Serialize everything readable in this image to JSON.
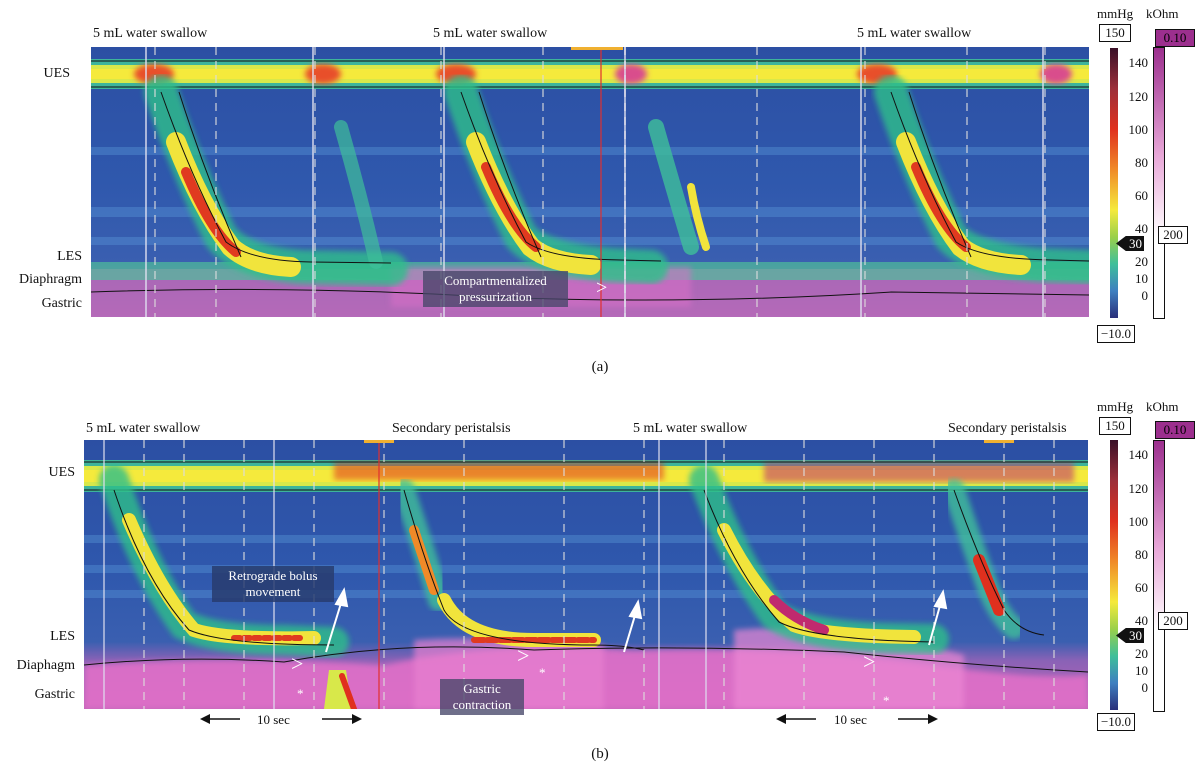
{
  "colors": {
    "background": "#2f56a8",
    "ues_band": "#f5ea3c",
    "peak": "#e0301e",
    "gastric": "#c065b8",
    "kohm_bar": "#9c2f8e"
  },
  "panel_a": {
    "swallow_labels": [
      "5 mL water swallow",
      "5 mL water swallow",
      "5 mL water swallow"
    ],
    "y_labels": {
      "ues": "UES",
      "les": "LES",
      "diaphragm": "Diaphragm",
      "gastric": "Gastric"
    },
    "annotation": "Compartmentalized pressurization",
    "arrowhead": ">",
    "caption": "(a)"
  },
  "panel_b": {
    "swallow_labels": [
      "5 mL water swallow",
      "Secondary peristalsis",
      "5 mL water swallow",
      "Secondary peristalsis"
    ],
    "y_labels": {
      "ues": "UES",
      "les": "LES",
      "diaphragm": "Diaphagm",
      "gastric": "Gastric"
    },
    "annotation_bolus": "Retrograde bolus movement",
    "annotation_gastric": "Gastric contraction",
    "arrowhead": ">",
    "asterisk": "*",
    "time_scale": "10 sec",
    "caption": "(b)"
  },
  "colorbar": {
    "unit_pressure": "mmHg",
    "unit_impedance": "kOhm",
    "max_box": "150",
    "min_box": "−10.0",
    "marker": "30",
    "impedance_top": "0.10",
    "impedance_marker": "200",
    "ticks": [
      "140",
      "120",
      "100",
      "80",
      "60",
      "40",
      "30",
      "20",
      "10",
      "0"
    ]
  },
  "chart_data": [
    {
      "type": "heatmap",
      "panel": "(a)",
      "xlabel": "",
      "ylabel": "",
      "y_categories": [
        "UES",
        "LES",
        "Diaphragm",
        "Gastric"
      ],
      "events": [
        "5 mL water swallow",
        "5 mL water swallow",
        "5 mL water swallow"
      ],
      "annotations": [
        "Compartmentalized pressurization"
      ],
      "colorbar": {
        "unit": "mmHg",
        "range": [
          -10,
          150
        ],
        "ticks": [
          0,
          10,
          20,
          30,
          40,
          60,
          80,
          100,
          120,
          140
        ],
        "isobar": 30
      },
      "impedance_scale": {
        "unit": "kOhm",
        "top": 0.1,
        "marker": 200
      }
    },
    {
      "type": "heatmap",
      "panel": "(b)",
      "xlabel": "",
      "ylabel": "",
      "y_categories": [
        "UES",
        "LES",
        "Diaphagm",
        "Gastric"
      ],
      "events": [
        "5 mL water swallow",
        "Secondary peristalsis",
        "5 mL water swallow",
        "Secondary peristalsis"
      ],
      "annotations": [
        "Retrograde bolus movement",
        "Gastric contraction"
      ],
      "time_scale_sec": 10,
      "colorbar": {
        "unit": "mmHg",
        "range": [
          -10,
          150
        ],
        "ticks": [
          0,
          10,
          20,
          30,
          40,
          60,
          80,
          100,
          120,
          140
        ],
        "isobar": 30
      },
      "impedance_scale": {
        "unit": "kOhm",
        "top": 0.1,
        "marker": 200
      }
    }
  ]
}
